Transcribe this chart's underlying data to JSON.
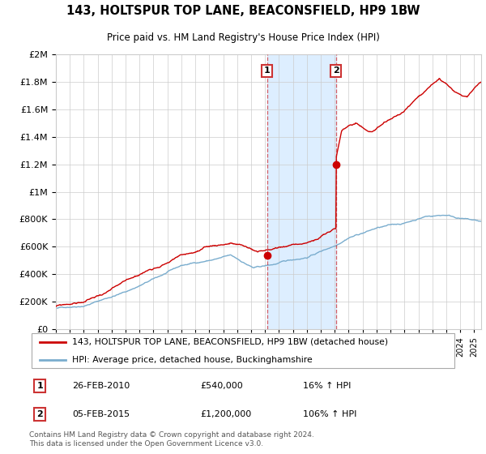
{
  "title": "143, HOLTSPUR TOP LANE, BEACONSFIELD, HP9 1BW",
  "subtitle": "Price paid vs. HM Land Registry's House Price Index (HPI)",
  "legend_line1": "143, HOLTSPUR TOP LANE, BEACONSFIELD, HP9 1BW (detached house)",
  "legend_line2": "HPI: Average price, detached house, Buckinghamshire",
  "annotation1_date": "26-FEB-2010",
  "annotation1_price": "£540,000",
  "annotation1_hpi": "16% ↑ HPI",
  "annotation2_date": "05-FEB-2015",
  "annotation2_price": "£1,200,000",
  "annotation2_hpi": "106% ↑ HPI",
  "footer": "Contains HM Land Registry data © Crown copyright and database right 2024.\nThis data is licensed under the Open Government Licence v3.0.",
  "red_color": "#cc0000",
  "blue_color": "#7aadce",
  "shading_color": "#ddeeff",
  "box_edge_color": "#cc3333",
  "background_color": "#ffffff",
  "grid_color": "#cccccc",
  "ylim": [
    0,
    2000000
  ],
  "xlim_start": 1995,
  "xlim_end": 2025.5,
  "purchase1_year": 2010.15,
  "purchase1_value": 540000,
  "purchase2_year": 2015.09,
  "purchase2_value": 1200000
}
